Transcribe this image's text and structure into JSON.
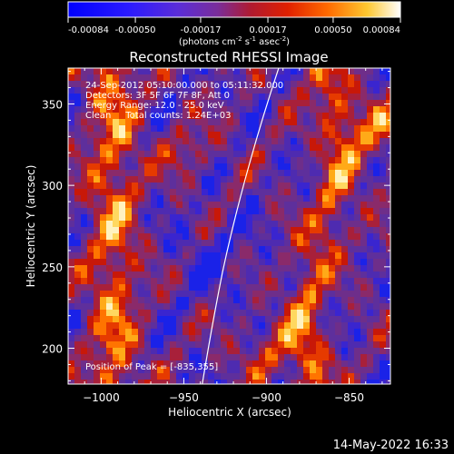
{
  "colorbar": {
    "ticks": [
      "-0.00084",
      "-0.00050",
      "-0.00017",
      "0.00017",
      "0.00050",
      "0.00084"
    ],
    "range": [
      -0.00084,
      0.00084
    ],
    "units_prefix": "(photons cm",
    "units_exp1": "-2",
    "units_mid1": " s",
    "units_exp2": "-1",
    "units_mid2": " asec",
    "units_exp3": "-2",
    "units_suffix": ")"
  },
  "chart_data": {
    "type": "heatmap",
    "title": "Reconstructed RHESSI Image",
    "xlabel": "Heliocentric X (arcsec)",
    "ylabel": "Heliocentric Y (arcsec)",
    "xlim": [
      -1020,
      -825
    ],
    "ylim": [
      178,
      372
    ],
    "x_ticks": [
      -1000,
      -950,
      -900,
      -850
    ],
    "y_ticks": [
      200,
      250,
      300,
      350
    ],
    "x_tick_labels": [
      "−1000",
      "−950",
      "−900",
      "−850"
    ],
    "y_tick_labels": [
      "200",
      "250",
      "300",
      "350"
    ],
    "colormap": "blue-purple-red-yellow-white",
    "annotations": [
      "24-Sep-2012 05:10:00.000 to 05:11:32.000",
      "Detectors: 3F 5F 6F 7F 8F, Att 0",
      "Energy Range: 12.0 - 25.0 keV",
      "Clean     Total counts: 1.24E+03"
    ],
    "peak_label": "Position of Peak = [-835,355]",
    "peak_position": [
      -835,
      355
    ],
    "limb_visible": true,
    "footer": "14-May-2022 16:33"
  },
  "colors": {
    "background": "#000000",
    "foreground": "#ffffff"
  }
}
